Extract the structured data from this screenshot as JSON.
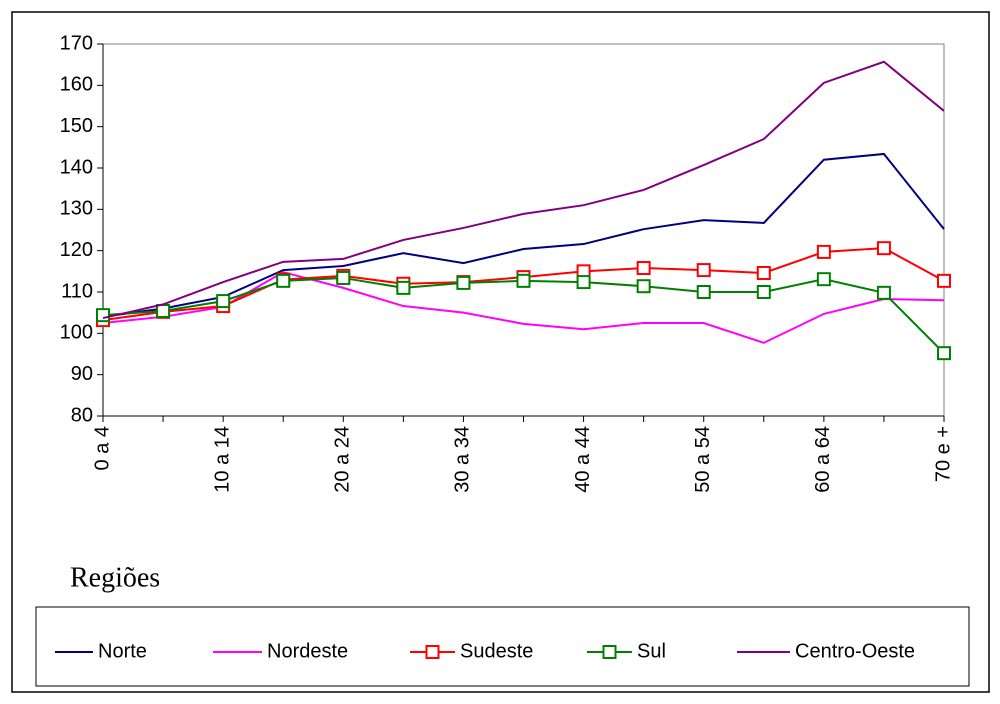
{
  "chart_data": {
    "type": "line",
    "categories": [
      "0 a 4",
      null,
      "10 a 14",
      null,
      "20 a 24",
      null,
      "30 a 34",
      null,
      "40 a 44",
      null,
      "50 a 54",
      null,
      "60 a 64",
      null,
      "70 e +"
    ],
    "series": [
      {
        "name": "Norte",
        "color": "#000080",
        "marker": "none",
        "values": [
          104,
          106,
          108.8,
          115.3,
          116.3,
          119.4,
          117,
          120.4,
          121.6,
          125.2,
          127.4,
          126.7,
          142,
          143.4,
          125.2
        ]
      },
      {
        "name": "Nordeste",
        "color": "#ff00ff",
        "marker": "none",
        "values": [
          102.5,
          104,
          106.4,
          114.8,
          111,
          106.6,
          105,
          102.3,
          101,
          102.5,
          102.5,
          97.7,
          104.7,
          108.3,
          108
        ]
      },
      {
        "name": "Sudeste",
        "color": "#ff0000",
        "marker": "square",
        "values": [
          103.2,
          105.2,
          106.6,
          113,
          113.9,
          112,
          112.4,
          113.6,
          115,
          115.8,
          115.3,
          114.6,
          119.7,
          120.6,
          112.7
        ]
      },
      {
        "name": "Sul",
        "color": "#008000",
        "marker": "square",
        "values": [
          104.4,
          105.4,
          107.8,
          112.7,
          113.4,
          111,
          112.2,
          112.7,
          112.4,
          111.4,
          110,
          110,
          113.1,
          109.8,
          95.2
        ]
      },
      {
        "name": "Centro-Oeste",
        "color": "#800080",
        "marker": "none",
        "values": [
          103.7,
          107,
          112.4,
          117.3,
          118,
          122.6,
          125.5,
          128.9,
          131,
          134.7,
          140.7,
          147,
          160.6,
          165.7,
          153.8
        ]
      }
    ],
    "legend_title": "Regiões",
    "ylim": [
      80,
      170
    ],
    "yticks": [
      80,
      90,
      100,
      110,
      120,
      130,
      140,
      150,
      160,
      170
    ]
  }
}
